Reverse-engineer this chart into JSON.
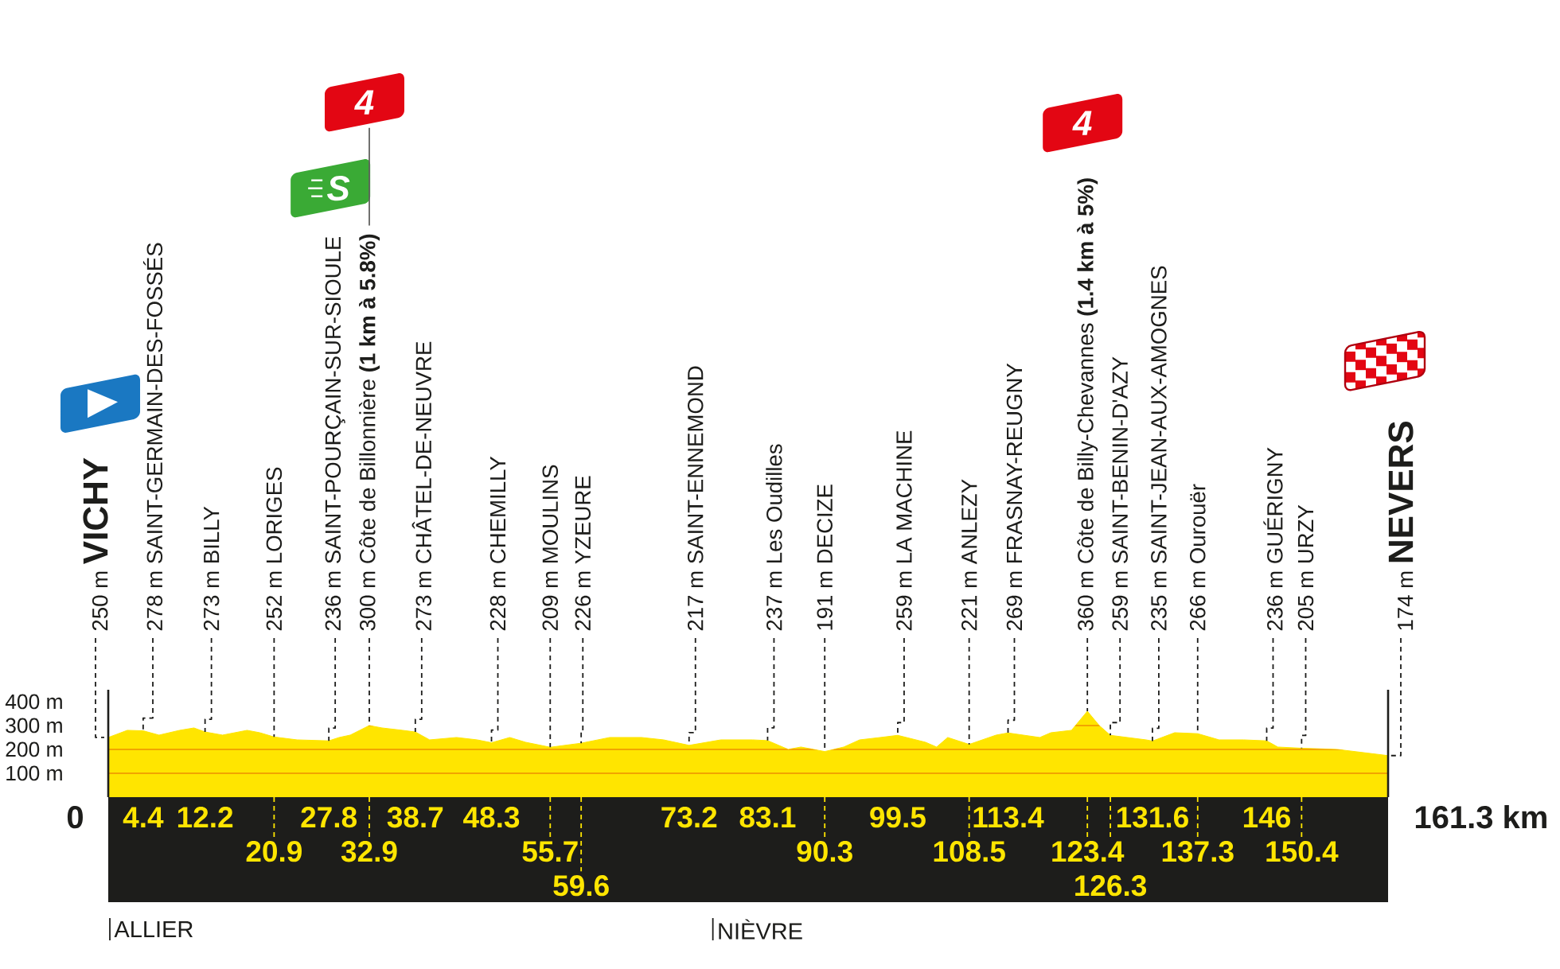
{
  "chart_data": {
    "type": "area",
    "x": [
      0,
      2.4,
      4.4,
      6.4,
      9.0,
      10.8,
      12.2,
      14.4,
      17.5,
      19.1,
      20.9,
      23.8,
      27.8,
      29.1,
      30.5,
      32.9,
      34.5,
      37.1,
      38.7,
      40.5,
      43.9,
      46.5,
      48.3,
      50.6,
      52.6,
      55.7,
      59.6,
      63.2,
      67.2,
      70.0,
      73.2,
      77.2,
      81.2,
      83.1,
      85.7,
      87.3,
      90.3,
      92.7,
      94.7,
      97.3,
      99.5,
      103.0,
      104.4,
      105.8,
      108.5,
      111.9,
      113.4,
      117.4,
      118.8,
      121.4,
      123.4,
      124.9,
      126.3,
      130.8,
      131.6,
      134.4,
      137.3,
      140.0,
      143.1,
      146,
      147.4,
      150.4,
      154.9,
      161.3
    ],
    "values": [
      250,
      280,
      278,
      260,
      280,
      290,
      273,
      260,
      280,
      270,
      252,
      240,
      236,
      250,
      260,
      300,
      290,
      280,
      273,
      240,
      250,
      240,
      228,
      250,
      230,
      209,
      226,
      250,
      250,
      240,
      217,
      240,
      240,
      237,
      200,
      210,
      191,
      210,
      240,
      250,
      259,
      230,
      210,
      250,
      221,
      260,
      269,
      250,
      270,
      280,
      360,
      300,
      259,
      240,
      235,
      270,
      266,
      240,
      240,
      236,
      210,
      205,
      200,
      174
    ],
    "color": "#ffe500",
    "xlim": [
      0,
      161.3
    ],
    "xticks": [
      4.4,
      12.2,
      27.8,
      38.7,
      48.3,
      73.2,
      83.1,
      99.5,
      113.4,
      131.6,
      146
    ],
    "ylim": [
      0,
      450
    ],
    "yticks": [
      {
        "value": 100,
        "label": "100 m"
      },
      {
        "value": 200,
        "label": "200 m"
      },
      {
        "value": 300,
        "label": "300 m"
      },
      {
        "value": 400,
        "label": "400 m"
      }
    ],
    "grid": "y",
    "ref_lines": [
      {
        "axis": "x",
        "value": 0,
        "label": "ALLIER"
      },
      {
        "axis": "x",
        "value": 76,
        "label": "NIÈVRE"
      }
    ],
    "annotations": [
      {
        "text": "250 m **VICHY**",
        "x": 0,
        "y": 250
      },
      {
        "text": "278 m SAINT-GERMAIN-DES-FOSSÉS",
        "x": 4.4,
        "y": 278
      },
      {
        "text": "273 m BILLY",
        "x": 12.2,
        "y": 273
      },
      {
        "text": "252 m LORIGES",
        "x": 20.9,
        "y": 252
      },
      {
        "text": "236 m SAINT-POURÇAIN-SUR-SIOULE",
        "x": 27.8,
        "y": 236
      },
      "S",
      {
        "text": "300 m Côte de Billonnière **(1 km à 5.8%)**",
        "x": 32.9,
        "y": 300
      },
      "4",
      {
        "text": "273 m CHÂTEL-DE-NEUVRE",
        "x": 38.7,
        "y": 273
      },
      {
        "text": "228 m CHEMILLY",
        "x": 48.3,
        "y": 228
      },
      {
        "text": "209 m MOULINS",
        "x": 55.7,
        "y": 209
      },
      {
        "text": "226 m YZEURE",
        "x": 59.6,
        "y": 226
      },
      {
        "text": "217 m SAINT-ENNEMOND",
        "x": 73.2,
        "y": 217
      },
      {
        "text": "237 m Les Oudilles",
        "x": 83.1,
        "y": 237
      },
      {
        "text": "191 m DECIZE",
        "x": 90.3,
        "y": 191
      },
      {
        "text": "259 m LA MACHINE",
        "x": 99.5,
        "y": 259
      },
      {
        "text": "221 m ANLEZY",
        "x": 108.5,
        "y": 221
      },
      {
        "text": "269 m FRASNAY-REUGNY",
        "x": 113.4,
        "y": 269
      },
      {
        "text": "360 m Côte de Billy-Chevannes **(1.4 km à 5%)**",
        "x": 123.4,
        "y": 360
      },
      "4",
      {
        "text": "259 m SAINT-BENIN-D'AZY",
        "x": 126.3,
        "y": 259
      },
      {
        "text": "235 m SAINT-JEAN-AUX-AMOGNES",
        "x": 131.6,
        "y": 235
      },
      {
        "text": "266 m Ourouër",
        "x": 137.3,
        "y": 266
      },
      {
        "text": "236 m GUÉRIGNY",
        "x": 146,
        "y": 236
      },
      {
        "text": "205 m URZY",
        "x": 150.4,
        "y": 205
      },
      {
        "text": "174 m **NEVERS**",
        "x": 161.3,
        "y": 174
      },
      {
        "text": "0",
        "x": 0,
        "y": 0
      },
      {
        "text": "20.9",
        "x": 20.9,
        "y": 0
      },
      {
        "text": "32.9",
        "x": 32.9,
        "y": 0
      },
      {
        "text": "55.7",
        "x": 55.7,
        "y": 0
      },
      {
        "text": "59.6",
        "x": 59.6,
        "y": 0
      },
      {
        "text": "90.3",
        "x": 90.3,
        "y": 0
      },
      {
        "text": "108.5",
        "x": 108.5,
        "y": 0
      },
      {
        "text": "123.4",
        "x": 123.4,
        "y": 0
      },
      {
        "text": "126.3",
        "x": 126.3,
        "y": 0
      },
      {
        "text": "137.3",
        "x": 137.3,
        "y": 0
      },
      {
        "text": "150.4",
        "x": 150.4,
        "y": 0
      },
      {
        "text": "161.3 km",
        "x": 161.3,
        "y": 0
      }
    ]
  }
}
